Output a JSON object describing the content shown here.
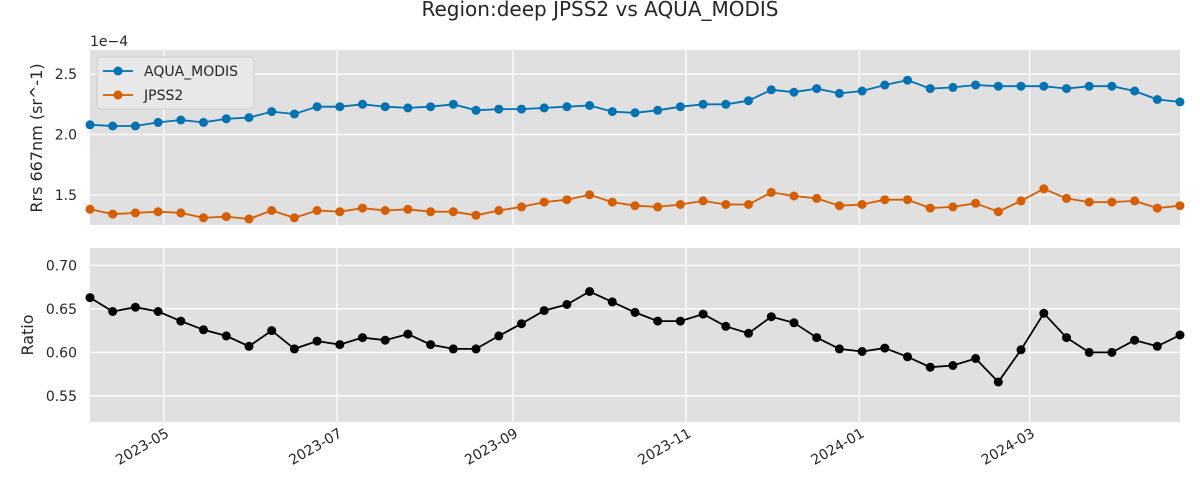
{
  "chart_data": {
    "title": "Region:deep JPSS2 vs AQUA_MODIS",
    "xticks": [
      "2023-05",
      "2023-07",
      "2023-09",
      "2023-11",
      "2024-01",
      "2024-03"
    ],
    "x": [
      "2023-04-05",
      "2023-04-13",
      "2023-04-21",
      "2023-04-29",
      "2023-05-07",
      "2023-05-15",
      "2023-05-23",
      "2023-05-31",
      "2023-06-08",
      "2023-06-16",
      "2023-06-24",
      "2023-07-02",
      "2023-07-10",
      "2023-07-18",
      "2023-07-26",
      "2023-08-03",
      "2023-08-11",
      "2023-08-19",
      "2023-08-27",
      "2023-09-04",
      "2023-09-12",
      "2023-09-20",
      "2023-09-28",
      "2023-10-06",
      "2023-10-14",
      "2023-10-22",
      "2023-10-30",
      "2023-11-07",
      "2023-11-15",
      "2023-11-23",
      "2023-12-01",
      "2023-12-09",
      "2023-12-17",
      "2023-12-25",
      "2024-01-02",
      "2024-01-10",
      "2024-01-18",
      "2024-01-26",
      "2024-02-03",
      "2024-02-11",
      "2024-02-19",
      "2024-02-27",
      "2024-03-06",
      "2024-03-14",
      "2024-03-22",
      "2024-03-30",
      "2024-04-07",
      "2024-04-15",
      "2024-04-23"
    ],
    "xlim": [
      "2023-04-05",
      "2024-04-23"
    ],
    "panels": [
      {
        "type": "line",
        "ylabel": "Rrs 667nm (sr^-1)",
        "offset_text": "1e−4",
        "yticks": [
          1.5,
          2.0,
          2.5
        ],
        "yticklabels": [
          "1.5",
          "2.0",
          "2.5"
        ],
        "ylim": [
          1.25,
          2.7
        ],
        "legend_loc": "upper-left",
        "grid": true,
        "series": [
          {
            "name": "AQUA_MODIS",
            "color": "#0072b2",
            "values": [
              2.08,
              2.07,
              2.07,
              2.1,
              2.12,
              2.1,
              2.13,
              2.14,
              2.19,
              2.17,
              2.23,
              2.23,
              2.25,
              2.23,
              2.22,
              2.23,
              2.25,
              2.2,
              2.21,
              2.21,
              2.22,
              2.23,
              2.24,
              2.19,
              2.18,
              2.2,
              2.23,
              2.25,
              2.25,
              2.28,
              2.37,
              2.35,
              2.38,
              2.34,
              2.36,
              2.41,
              2.45,
              2.38,
              2.39,
              2.41,
              2.4,
              2.4,
              2.4,
              2.38,
              2.4,
              2.4,
              2.36,
              2.29,
              2.27
            ]
          },
          {
            "name": "JPSS2",
            "color": "#d55e00",
            "values": [
              1.38,
              1.34,
              1.35,
              1.36,
              1.35,
              1.31,
              1.32,
              1.3,
              1.37,
              1.31,
              1.37,
              1.36,
              1.39,
              1.37,
              1.38,
              1.36,
              1.36,
              1.33,
              1.37,
              1.4,
              1.44,
              1.46,
              1.5,
              1.44,
              1.41,
              1.4,
              1.42,
              1.45,
              1.42,
              1.42,
              1.52,
              1.49,
              1.47,
              1.41,
              1.42,
              1.46,
              1.46,
              1.39,
              1.4,
              1.43,
              1.36,
              1.45,
              1.55,
              1.47,
              1.44,
              1.44,
              1.45,
              1.39,
              1.41
            ]
          }
        ]
      },
      {
        "type": "line",
        "ylabel": "Ratio",
        "yticks": [
          0.55,
          0.6,
          0.65,
          0.7
        ],
        "yticklabels": [
          "0.55",
          "0.60",
          "0.65",
          "0.70"
        ],
        "ylim": [
          0.52,
          0.72
        ],
        "grid": true,
        "series": [
          {
            "color": "#000000",
            "values": [
              0.663,
              0.647,
              0.652,
              0.647,
              0.636,
              0.626,
              0.619,
              0.607,
              0.625,
              0.604,
              0.613,
              0.609,
              0.617,
              0.614,
              0.621,
              0.609,
              0.604,
              0.604,
              0.619,
              0.633,
              0.648,
              0.655,
              0.67,
              0.658,
              0.646,
              0.636,
              0.636,
              0.644,
              0.63,
              0.622,
              0.641,
              0.634,
              0.617,
              0.604,
              0.601,
              0.605,
              0.595,
              0.583,
              0.585,
              0.593,
              0.566,
              0.603,
              0.645,
              0.617,
              0.6,
              0.6,
              0.614,
              0.607,
              0.62
            ]
          }
        ]
      }
    ]
  }
}
